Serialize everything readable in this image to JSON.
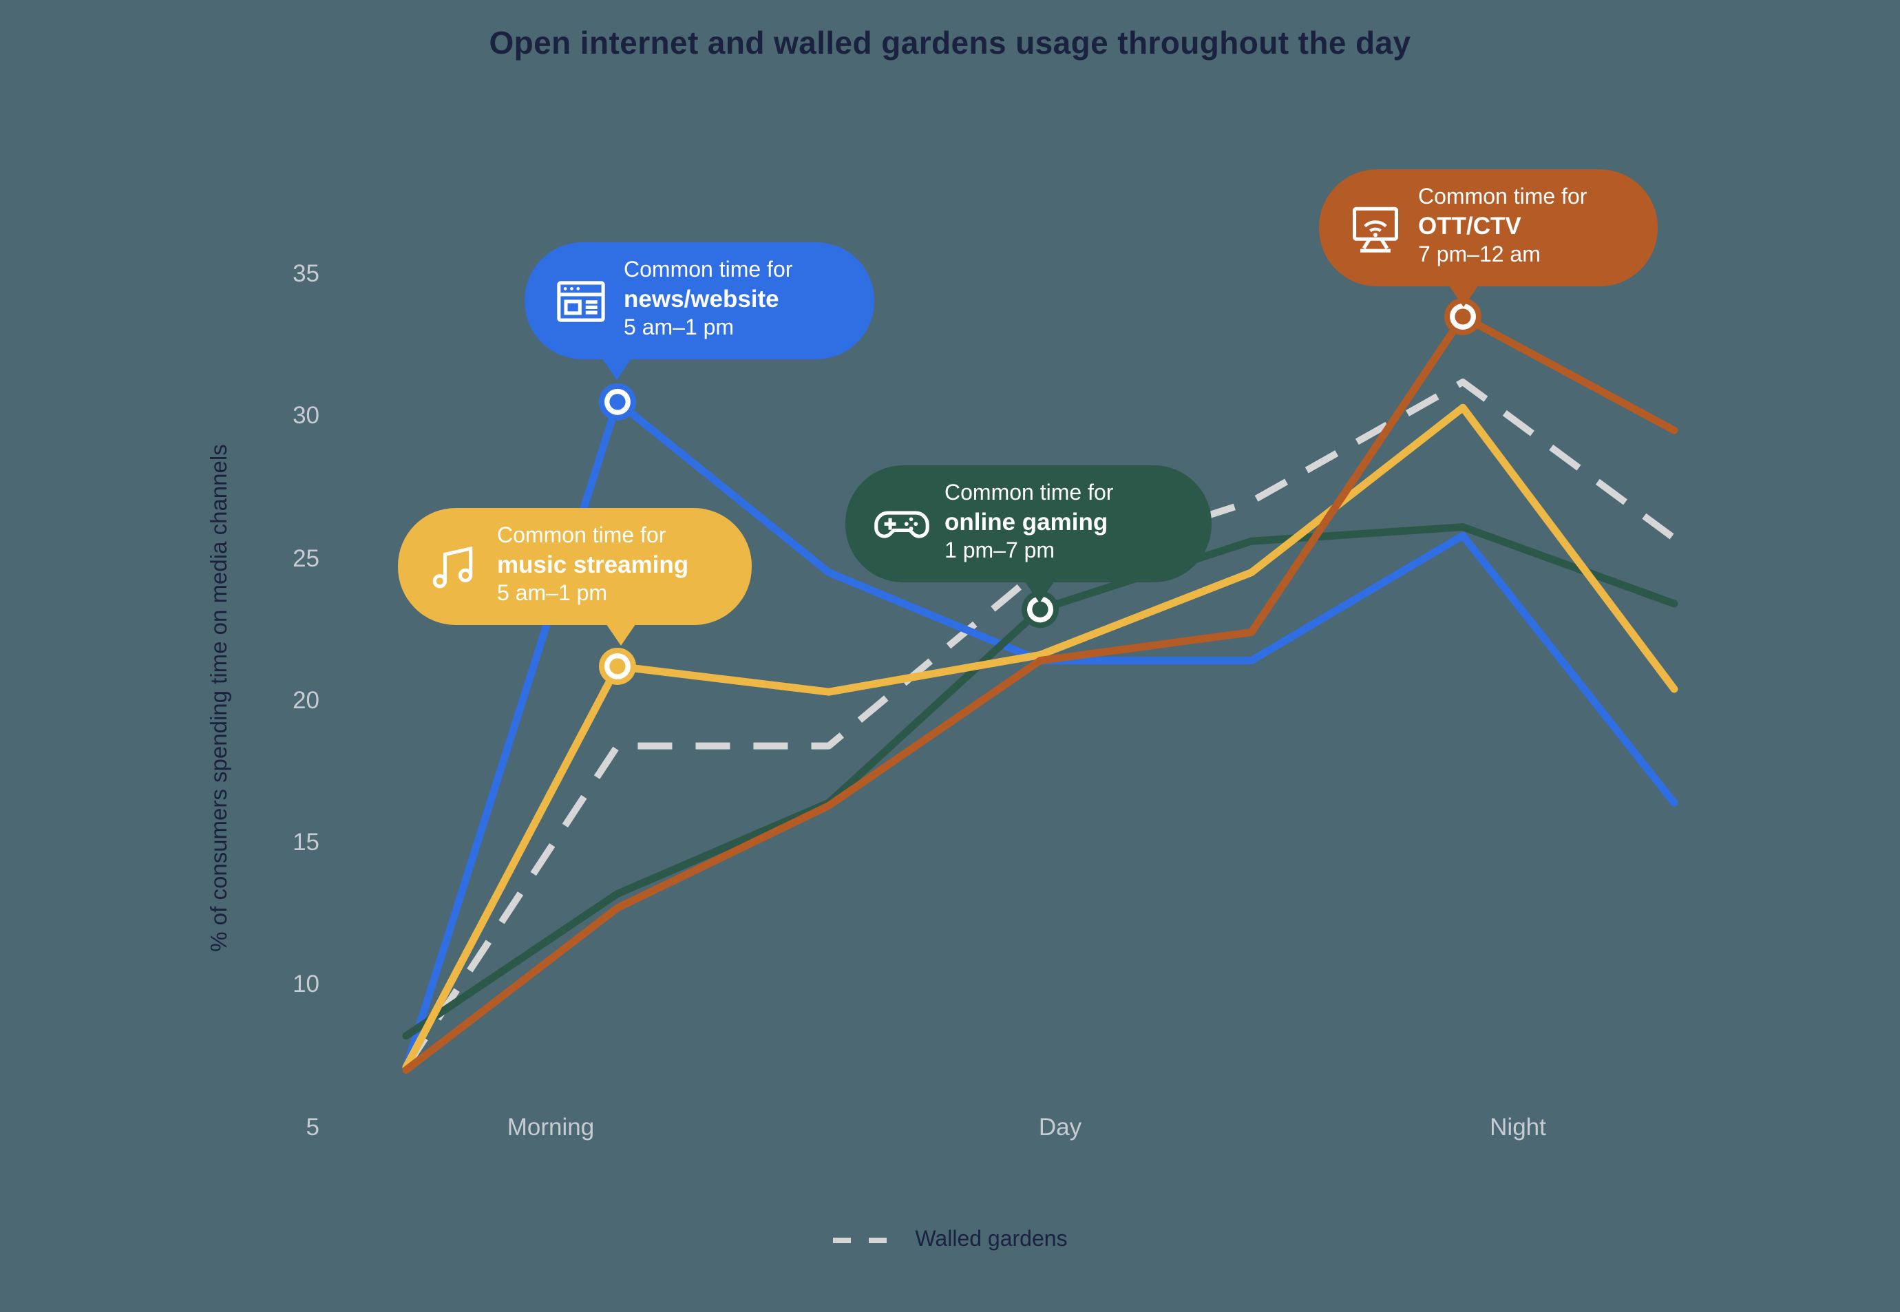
{
  "title": "Open internet and walled gardens usage throughout the day",
  "colors": {
    "background": "#4C6872",
    "title_text": "#1A2240",
    "tick_text": "#C7CBD2",
    "news_blue": "#2F6FE3",
    "music_yellow": "#EDB845",
    "gaming_green": "#2C584A",
    "ott_rust": "#B45B26",
    "walled_gray": "#D7D7D7"
  },
  "y_axis": {
    "label": "% of consumers spending time on media channels",
    "ticks": [
      "35",
      "30",
      "25",
      "20",
      "15",
      "10",
      "5"
    ],
    "min": 5,
    "max": 35
  },
  "x_axis": {
    "labels": [
      "Morning",
      "Day",
      "Night"
    ]
  },
  "legend": {
    "label": "Walled gardens"
  },
  "chart_data": {
    "type": "line",
    "title": "Open internet and walled gardens usage throughout the day",
    "ylabel": "% of consumers spending time on media channels",
    "ylim": [
      5,
      35
    ],
    "x_note": "7 evenly spaced time points across the day; category labels sit under points: Morning=index 1, Day=index 3, Night=index 5",
    "category_point_index": {
      "Morning": 1,
      "Day": 3,
      "Night": 5
    },
    "series": [
      {
        "id": "walled",
        "name": "Walled gardens",
        "style": "dashed",
        "color": "#D7D7D7",
        "values": [
          7.1,
          18.4,
          18.4,
          24.6,
          27.0,
          31.2,
          25.7
        ]
      },
      {
        "id": "news",
        "name": "news/website",
        "style": "solid",
        "color": "#2F6FE3",
        "values": [
          7.1,
          30.5,
          24.5,
          21.4,
          21.4,
          25.8,
          16.4
        ]
      },
      {
        "id": "gaming",
        "name": "online gaming",
        "style": "solid",
        "color": "#2C584A",
        "values": [
          8.2,
          13.2,
          16.4,
          23.2,
          25.6,
          26.1,
          23.4
        ]
      },
      {
        "id": "music",
        "name": "music streaming",
        "style": "solid",
        "color": "#EDB845",
        "values": [
          7.1,
          21.2,
          20.3,
          21.6,
          24.5,
          30.3,
          20.4
        ]
      },
      {
        "id": "ott",
        "name": "OTT/CTV",
        "style": "solid",
        "color": "#B45B26",
        "values": [
          7.0,
          12.7,
          16.3,
          21.4,
          22.4,
          33.5,
          29.5
        ]
      }
    ],
    "markers": [
      {
        "series": "news",
        "point_index": 1,
        "value": 30.5
      },
      {
        "series": "music",
        "point_index": 1,
        "value": 21.2
      },
      {
        "series": "gaming",
        "point_index": 3,
        "value": 23.2
      },
      {
        "series": "ott",
        "point_index": 5,
        "value": 33.5
      }
    ],
    "legend": {
      "position": "bottom-center",
      "entries": [
        "Walled gardens"
      ]
    },
    "grid": false
  },
  "callouts": [
    {
      "id": "news",
      "prefix": "Common time for",
      "label": "news/website",
      "time": "5 am–1 pm",
      "icon": "browser-window-icon",
      "color": "#2F6FE3"
    },
    {
      "id": "music",
      "prefix": "Common time for",
      "label": "music streaming",
      "time": "5 am–1 pm",
      "icon": "music-note-icon",
      "color": "#EDB845"
    },
    {
      "id": "gaming",
      "prefix": "Common time for",
      "label": "online gaming",
      "time": "1 pm–7 pm",
      "icon": "gamepad-icon",
      "color": "#2C584A"
    },
    {
      "id": "ott",
      "prefix": "Common time for",
      "label": "OTT/CTV",
      "time": "7 pm–12 am",
      "icon": "tv-wifi-icon",
      "color": "#B45B26"
    }
  ]
}
